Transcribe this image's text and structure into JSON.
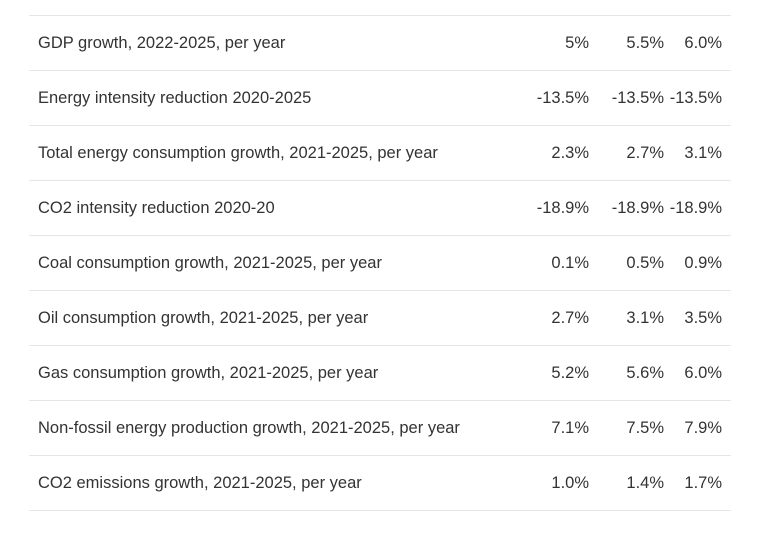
{
  "table": {
    "rows": [
      {
        "label": "GDP growth, 2022-2025, per year",
        "v1": "5%",
        "v2": "5.5%",
        "v3": "6.0%"
      },
      {
        "label": "Energy intensity reduction 2020-2025",
        "v1": "-13.5%",
        "v2": "-13.5%",
        "v3": "-13.5%"
      },
      {
        "label": "Total energy consumption growth, 2021-2025, per year",
        "v1": "2.3%",
        "v2": "2.7%",
        "v3": "3.1%"
      },
      {
        "label": "CO2 intensity reduction 2020-20",
        "v1": "-18.9%",
        "v2": "-18.9%",
        "v3": "-18.9%"
      },
      {
        "label": "Coal consumption growth, 2021-2025, per year",
        "v1": "0.1%",
        "v2": "0.5%",
        "v3": "0.9%"
      },
      {
        "label": "Oil consumption growth, 2021-2025, per year",
        "v1": "2.7%",
        "v2": "3.1%",
        "v3": "3.5%"
      },
      {
        "label": "Gas consumption growth, 2021-2025, per year",
        "v1": "5.2%",
        "v2": "5.6%",
        "v3": "6.0%"
      },
      {
        "label": "Non-fossil energy production growth, 2021-2025, per year",
        "v1": "7.1%",
        "v2": "7.5%",
        "v3": "7.9%"
      },
      {
        "label": "CO2 emissions growth, 2021-2025, per year",
        "v1": "1.0%",
        "v2": "1.4%",
        "v3": "1.7%"
      }
    ]
  }
}
